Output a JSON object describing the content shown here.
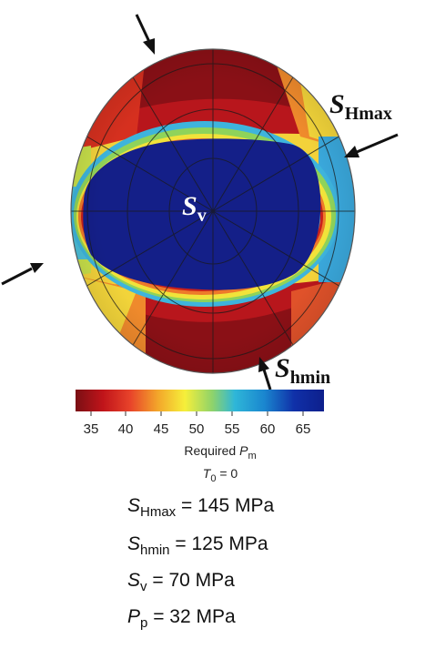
{
  "figure": {
    "center_label": {
      "symbol": "S",
      "sub": "v"
    },
    "arrow_labels": [
      {
        "key": "shmax",
        "symbol": "S",
        "sub": "Hmax"
      },
      {
        "key": "shmin",
        "symbol": "S",
        "sub": "hmin"
      }
    ],
    "colorbar": {
      "ticks": [
        "35",
        "40",
        "45",
        "50",
        "55",
        "60",
        "65"
      ],
      "title_prefix": "Required ",
      "title_symbol": "P",
      "title_sub": "m",
      "subtitle_symbol": "T",
      "subtitle_sub": "0",
      "subtitle_rest": " = 0",
      "colors": [
        "#7a0f14",
        "#c0141a",
        "#e8432a",
        "#f3a52a",
        "#f6ef3a",
        "#8fd36a",
        "#2fb7d8",
        "#1a86cf",
        "#1030a8",
        "#0d1f8c"
      ]
    },
    "stress_values": [
      {
        "symbol": "S",
        "sub": "Hmax",
        "rest": " = 145 MPa"
      },
      {
        "symbol": "S",
        "sub": "hmin",
        "rest": " = 125 MPa"
      },
      {
        "symbol": "S",
        "sub": "v",
        "rest": " = 70 MPa"
      },
      {
        "symbol": "P",
        "sub": "p",
        "rest": " = 32 MPa"
      }
    ]
  }
}
